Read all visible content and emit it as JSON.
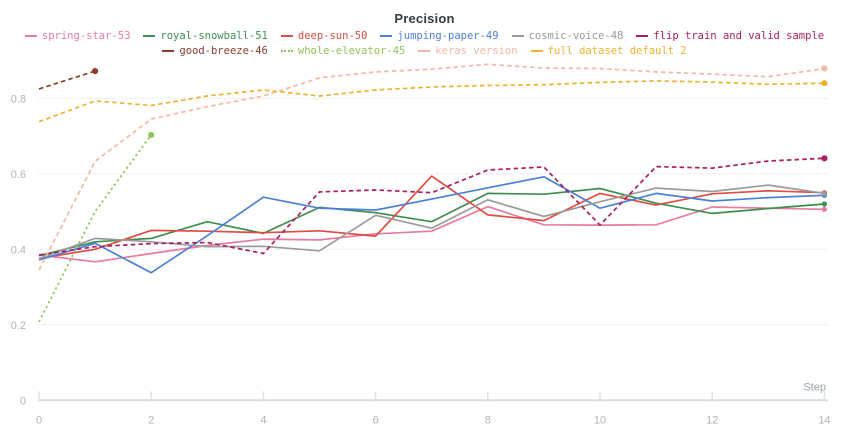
{
  "title": "Precision",
  "chart_data": {
    "type": "line",
    "title": "Precision",
    "xlabel": "Step",
    "x": [
      0,
      1,
      2,
      3,
      4,
      5,
      6,
      7,
      8,
      9,
      10,
      11,
      12,
      13,
      14
    ],
    "xlim": [
      0,
      14
    ],
    "ylim": [
      0,
      0.95
    ],
    "x_tick_labels": [
      "0",
      "2",
      "4",
      "6",
      "8",
      "10",
      "12",
      "14"
    ],
    "x_ticks": [
      0,
      2,
      4,
      6,
      8,
      10,
      12,
      14
    ],
    "y_tick_labels": [
      "0",
      "0.2",
      "0.4",
      "0.6",
      "0.8"
    ],
    "y_ticks": [
      0,
      0.2,
      0.4,
      0.6,
      0.8
    ],
    "grid": "horizontal",
    "legend_position": "top",
    "series": [
      {
        "name": "spring-star-53",
        "color": "#e87ba1",
        "style": "solid",
        "values": [
          0.385,
          0.367,
          0.389,
          0.41,
          0.427,
          0.425,
          0.441,
          0.448,
          0.513,
          0.465,
          0.464,
          0.465,
          0.512,
          0.509,
          0.506
        ]
      },
      {
        "name": "royal-snowball-51",
        "color": "#3e8e50",
        "style": "solid",
        "values": [
          0.383,
          0.42,
          0.429,
          0.473,
          0.442,
          0.511,
          0.497,
          0.473,
          0.548,
          0.546,
          0.561,
          0.522,
          0.495,
          0.508,
          0.52
        ]
      },
      {
        "name": "deep-sun-50",
        "color": "#e04b42",
        "style": "solid",
        "values": [
          0.376,
          0.4,
          0.45,
          0.448,
          0.444,
          0.449,
          0.435,
          0.594,
          0.491,
          0.476,
          0.548,
          0.517,
          0.547,
          0.555,
          0.55
        ]
      },
      {
        "name": "jumping-paper-49",
        "color": "#4b80d9",
        "style": "solid",
        "values": [
          0.372,
          0.416,
          0.338,
          0.436,
          0.538,
          0.509,
          0.504,
          0.533,
          0.563,
          0.592,
          0.509,
          0.548,
          0.528,
          0.537,
          0.543
        ]
      },
      {
        "name": "cosmic-voice-48",
        "color": "#9b9b9b",
        "style": "solid",
        "values": [
          0.375,
          0.429,
          0.42,
          0.407,
          0.408,
          0.396,
          0.49,
          0.456,
          0.531,
          0.487,
          0.526,
          0.562,
          0.553,
          0.57,
          0.548
        ]
      },
      {
        "name": "flip train and valid sample",
        "color": "#ab1f60",
        "style": "dashed",
        "values": [
          0.385,
          0.407,
          0.415,
          0.418,
          0.389,
          0.552,
          0.557,
          0.55,
          0.61,
          0.618,
          0.464,
          0.619,
          0.615,
          0.634,
          0.641
        ]
      },
      {
        "name": "good-breeze-46",
        "color": "#8d3d2c",
        "style": "dashed",
        "x": [
          0,
          1
        ],
        "values": [
          0.825,
          0.872
        ]
      },
      {
        "name": "whole-elevator-45",
        "color": "#90c355",
        "style": "dotted",
        "x": [
          0,
          1,
          2
        ],
        "values": [
          0.208,
          0.5,
          0.703
        ]
      },
      {
        "name": "keras version",
        "color": "#f4b9a5",
        "style": "dashed",
        "values": [
          0.345,
          0.633,
          0.745,
          0.778,
          0.806,
          0.854,
          0.87,
          0.877,
          0.89,
          0.88,
          0.879,
          0.87,
          0.864,
          0.857,
          0.879
        ]
      },
      {
        "name": "full dataset default 2",
        "color": "#eeb233",
        "style": "dashed",
        "values": [
          0.738,
          0.793,
          0.781,
          0.806,
          0.822,
          0.806,
          0.822,
          0.83,
          0.834,
          0.836,
          0.842,
          0.846,
          0.843,
          0.837,
          0.84
        ]
      }
    ]
  },
  "style": {
    "grid_color": "#efefef",
    "axis_color": "#dcdcdc",
    "tick_color": "#e2e2e2",
    "tick_label_color": "#b3b3b3",
    "axis_label_color": "#9ba1a6",
    "title_color": "#363d41"
  }
}
